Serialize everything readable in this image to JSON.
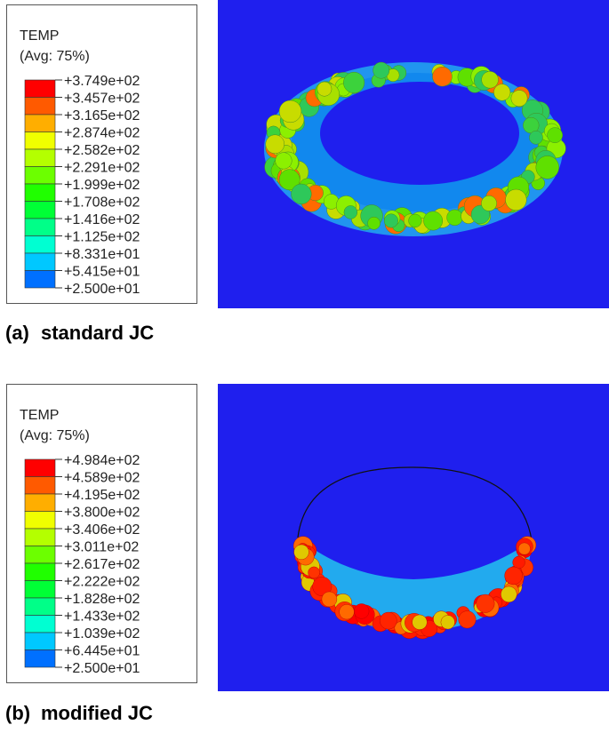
{
  "panels": [
    {
      "legend": {
        "title": "TEMP",
        "subtitle": "(Avg: 75%)",
        "labels": [
          "+3.749e+02",
          "+3.457e+02",
          "+3.165e+02",
          "+2.874e+02",
          "+2.582e+02",
          "+2.291e+02",
          "+1.999e+02",
          "+1.708e+02",
          "+1.416e+02",
          "+1.125e+02",
          "+8.331e+01",
          "+5.415e+01",
          "+2.500e+01"
        ]
      },
      "caption_label": "(a)",
      "caption": "standard JC"
    },
    {
      "legend": {
        "title": "TEMP",
        "subtitle": "(Avg: 75%)",
        "labels": [
          "+4.984e+02",
          "+4.589e+02",
          "+4.195e+02",
          "+3.800e+02",
          "+3.406e+02",
          "+3.011e+02",
          "+2.617e+02",
          "+2.222e+02",
          "+1.828e+02",
          "+1.433e+02",
          "+1.039e+02",
          "+6.445e+01",
          "+2.500e+01"
        ]
      },
      "caption_label": "(b)",
      "caption": "modified JC"
    }
  ]
}
